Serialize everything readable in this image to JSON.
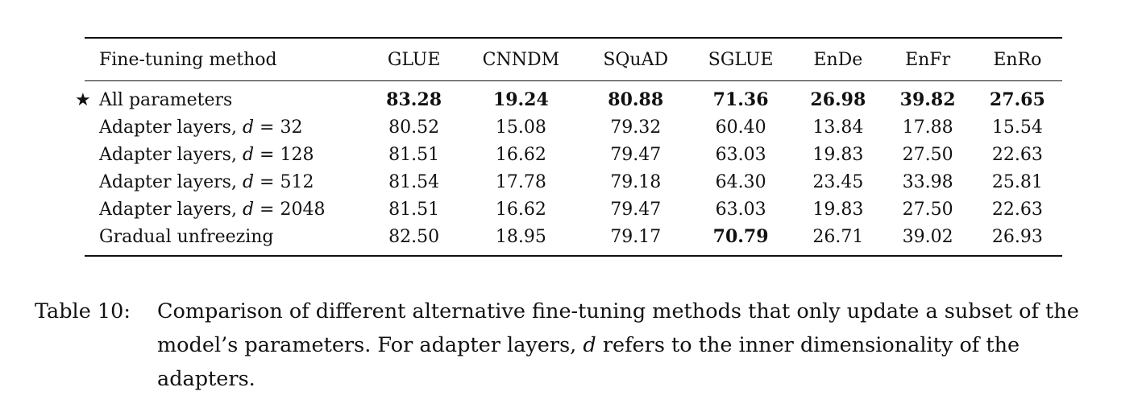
{
  "table": {
    "columns": [
      "Fine-tuning method",
      "GLUE",
      "CNNDM",
      "SQuAD",
      "SGLUE",
      "EnDe",
      "EnFr",
      "EnRo"
    ],
    "rows": [
      {
        "marker": "★",
        "method": "All parameters",
        "method_var": "",
        "values": [
          "83.28",
          "19.24",
          "80.88",
          "71.36",
          "26.98",
          "39.82",
          "27.65"
        ],
        "bold": [
          true,
          true,
          true,
          true,
          true,
          true,
          true
        ]
      },
      {
        "marker": "",
        "method": "Adapter layers, ",
        "method_var": "d",
        "method_eq": " = 32",
        "values": [
          "80.52",
          "15.08",
          "79.32",
          "60.40",
          "13.84",
          "17.88",
          "15.54"
        ],
        "bold": [
          false,
          false,
          false,
          false,
          false,
          false,
          false
        ]
      },
      {
        "marker": "",
        "method": "Adapter layers, ",
        "method_var": "d",
        "method_eq": " = 128",
        "values": [
          "81.51",
          "16.62",
          "79.47",
          "63.03",
          "19.83",
          "27.50",
          "22.63"
        ],
        "bold": [
          false,
          false,
          false,
          false,
          false,
          false,
          false
        ]
      },
      {
        "marker": "",
        "method": "Adapter layers, ",
        "method_var": "d",
        "method_eq": " = 512",
        "values": [
          "81.54",
          "17.78",
          "79.18",
          "64.30",
          "23.45",
          "33.98",
          "25.81"
        ],
        "bold": [
          false,
          false,
          false,
          false,
          false,
          false,
          false
        ]
      },
      {
        "marker": "",
        "method": "Adapter layers, ",
        "method_var": "d",
        "method_eq": " = 2048",
        "values": [
          "81.51",
          "16.62",
          "79.47",
          "63.03",
          "19.83",
          "27.50",
          "22.63"
        ],
        "bold": [
          false,
          false,
          false,
          false,
          false,
          false,
          false
        ]
      },
      {
        "marker": "",
        "method": "Gradual unfreezing",
        "method_var": "",
        "values": [
          "82.50",
          "18.95",
          "79.17",
          "70.79",
          "26.71",
          "39.02",
          "26.93"
        ],
        "bold": [
          false,
          false,
          false,
          true,
          false,
          false,
          false
        ]
      }
    ]
  },
  "caption": {
    "label": "Table 10:",
    "text_before_var": "Comparison of different alternative fine-tuning methods that only update a subset of the model’s parameters. For adapter layers, ",
    "var": "d",
    "text_after_var": " refers to the inner dimensionality of the adapters."
  }
}
